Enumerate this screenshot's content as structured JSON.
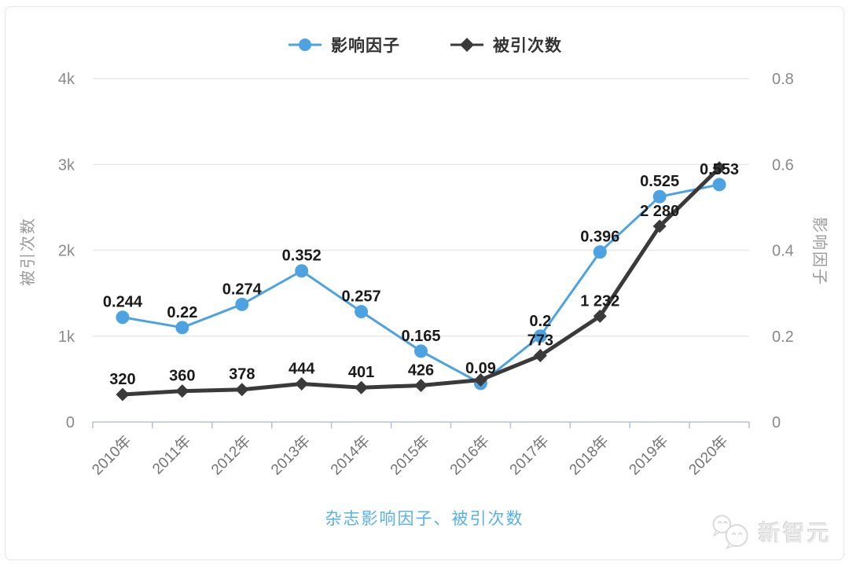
{
  "legend": {
    "items": [
      {
        "label": "影响因子",
        "marker": "circle",
        "color": "#4da3e2"
      },
      {
        "label": "被引次数",
        "marker": "diamond",
        "color": "#3a3a3a"
      }
    ]
  },
  "title": {
    "text": "杂志影响因子、被引次数",
    "color": "#58b0e8"
  },
  "watermark": {
    "text": "新智元",
    "icon": "wechat-bubbles-icon"
  },
  "left_axis": {
    "title": "被引次数",
    "ticks": [
      "0",
      "1k",
      "2k",
      "3k",
      "4k"
    ],
    "min": 0,
    "max": 4000
  },
  "right_axis": {
    "title": "影响因子",
    "ticks": [
      "0",
      "0.2",
      "0.4",
      "0.6",
      "0.8"
    ],
    "min": 0,
    "max": 0.8
  },
  "chart_data": {
    "type": "line",
    "title": "杂志影响因子、被引次数",
    "categories": [
      "2010年",
      "2011年",
      "2012年",
      "2013年",
      "2014年",
      "2015年",
      "2016年",
      "2017年",
      "2018年",
      "2019年",
      "2020年"
    ],
    "series": [
      {
        "name": "影响因子",
        "axis": "right",
        "color": "#4da3e2",
        "marker": "circle",
        "line_width": 3,
        "marker_size": 8.5,
        "values": [
          0.244,
          0.22,
          0.274,
          0.352,
          0.257,
          0.165,
          0.09,
          0.2,
          0.396,
          0.525,
          0.553
        ],
        "labels": [
          "0.244",
          "0.22",
          "0.274",
          "0.352",
          "0.257",
          "0.165",
          "0.09",
          "0.2",
          "0.396",
          "0.525",
          "0.553"
        ]
      },
      {
        "name": "被引次数",
        "axis": "left",
        "color": "#3a3a3a",
        "marker": "diamond",
        "line_width": 5,
        "marker_size": 8.5,
        "values": [
          320,
          360,
          378,
          444,
          401,
          426,
          490,
          773,
          1232,
          2280,
          2960
        ],
        "labels": [
          "320",
          "360",
          "378",
          "444",
          "401",
          "426",
          null,
          "773",
          "1 232",
          "2 280",
          null
        ]
      }
    ],
    "left_ylim": [
      0,
      4000
    ],
    "right_ylim": [
      0,
      0.8
    ],
    "grid": true,
    "legend_position": "top",
    "axis_line_color": "#b6c2da",
    "grid_color": "#e8e8e8"
  }
}
